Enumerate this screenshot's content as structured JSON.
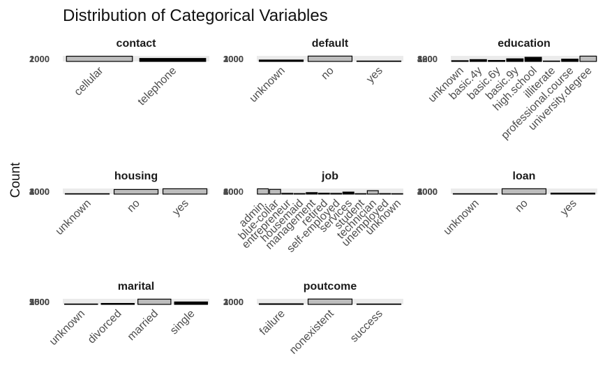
{
  "chart_data": {
    "type": "bar",
    "title": "Distribution of Categorical Variables",
    "ylabel": "Count",
    "xlabel": "",
    "facets": [
      {
        "name": "contact",
        "categories": [
          "cellular",
          "telephone"
        ],
        "values": [
          26144,
          15044
        ],
        "yticks": [
          "1000",
          "2000"
        ],
        "ylim": [
          0,
          28000
        ],
        "fills": [
          "#bdbdbd",
          "#000000"
        ]
      },
      {
        "name": "default",
        "categories": [
          "unknown",
          "no",
          "yes"
        ],
        "values": [
          8597,
          32588,
          3
        ],
        "yticks": [
          "1000",
          "2000",
          "3000"
        ],
        "ylim": [
          0,
          34000
        ],
        "fills": [
          "#000000",
          "#bdbdbd",
          "#000000"
        ]
      },
      {
        "name": "education",
        "categories": [
          "unknown",
          "basic.4y",
          "basic.6y",
          "basic.9y",
          "high.school",
          "illiterate",
          "professional.course",
          "university.degree"
        ],
        "values": [
          1731,
          4176,
          2292,
          6045,
          9515,
          18,
          5243,
          12168
        ],
        "yticks": [
          "400",
          "800",
          "1200",
          "1600"
        ],
        "ylim": [
          0,
          12800
        ],
        "fills": [
          "#000000",
          "#000000",
          "#000000",
          "#000000",
          "#000000",
          "#000000",
          "#000000",
          "#bdbdbd"
        ]
      },
      {
        "name": "housing",
        "categories": [
          "unknown",
          "no",
          "yes"
        ],
        "values": [
          990,
          18622,
          21576
        ],
        "yticks": [
          "1000",
          "2000",
          "3000",
          "4000"
        ],
        "ylim": [
          0,
          22600
        ],
        "fills": [
          "#000000",
          "#bdbdbd",
          "#bdbdbd"
        ]
      },
      {
        "name": "job",
        "categories": [
          "admin.",
          "blue-collar",
          "entrepreneur",
          "housemaid",
          "management",
          "retired",
          "self-employed",
          "services",
          "student",
          "technician",
          "unemployed",
          "unknown"
        ],
        "values": [
          10422,
          9254,
          1456,
          1060,
          2924,
          1720,
          1421,
          3969,
          875,
          6743,
          1014,
          330
        ],
        "yticks": [
          "200",
          "400",
          "600",
          "800",
          "1000"
        ],
        "ylim": [
          0,
          11000
        ],
        "fills": [
          "#bdbdbd",
          "#bdbdbd",
          "#000000",
          "#000000",
          "#000000",
          "#000000",
          "#000000",
          "#000000",
          "#000000",
          "#bdbdbd",
          "#000000",
          "#000000"
        ]
      },
      {
        "name": "loan",
        "categories": [
          "unknown",
          "no",
          "yes"
        ],
        "values": [
          990,
          33950,
          6248
        ],
        "yticks": [
          "1000",
          "2000",
          "3000",
          "4000"
        ],
        "ylim": [
          0,
          35500
        ],
        "fills": [
          "#000000",
          "#bdbdbd",
          "#000000"
        ]
      },
      {
        "name": "marital",
        "categories": [
          "unknown",
          "divorced",
          "married",
          "single"
        ],
        "values": [
          80,
          4612,
          24928,
          11568
        ],
        "yticks": [
          "500",
          "1000",
          "1500",
          "2000",
          "2500"
        ],
        "ylim": [
          0,
          26500
        ],
        "fills": [
          "#000000",
          "#000000",
          "#bdbdbd",
          "#000000"
        ]
      },
      {
        "name": "poutcome",
        "categories": [
          "failure",
          "nonexistent",
          "success"
        ],
        "values": [
          4252,
          35563,
          1373
        ],
        "yticks": [
          "1000",
          "2000",
          "3000"
        ],
        "ylim": [
          0,
          37000
        ],
        "fills": [
          "#000000",
          "#bdbdbd",
          "#000000"
        ]
      }
    ],
    "bar_outline": "#000000",
    "grid": true,
    "legend": "none"
  }
}
